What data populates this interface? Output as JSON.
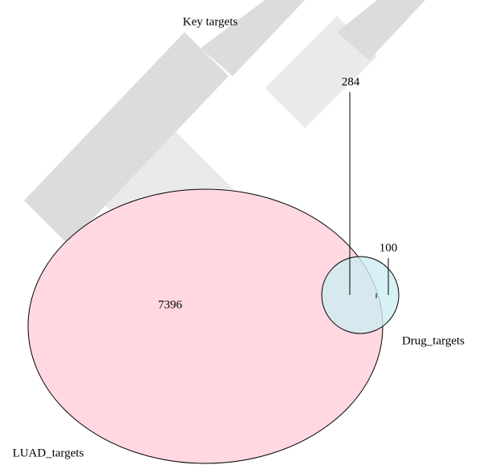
{
  "title": "Key targets",
  "sets": [
    {
      "label": "LUAD_targets",
      "only": "7396"
    },
    {
      "label": "Drug_targets",
      "only": "100"
    }
  ],
  "intersection": "284"
}
